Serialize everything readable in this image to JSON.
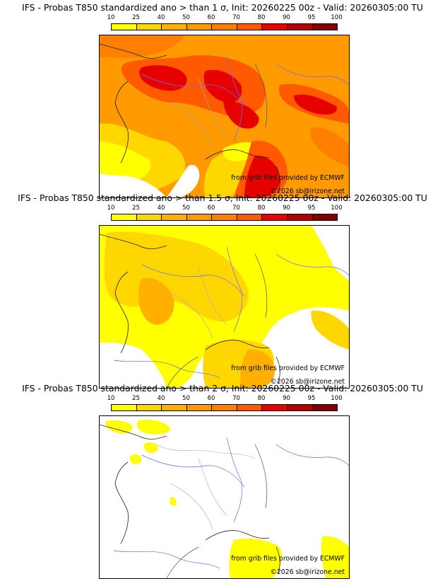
{
  "colorbar": {
    "ticks": [
      "10",
      "25",
      "40",
      "50",
      "60",
      "70",
      "80",
      "90",
      "95",
      "100"
    ],
    "colors": [
      "#ffff00",
      "#ffd700",
      "#ffb000",
      "#ff9a00",
      "#ff7f00",
      "#ff5a00",
      "#e60000",
      "#b40000",
      "#820000"
    ]
  },
  "panels": [
    {
      "title": "IFS - Probas T850  standardized ano > than 1 σ, Init: 20260225 00z - Valid: 20260305:00 TU",
      "credit": "from grib files provided by ECMWF",
      "copyright": "©2026 sb@irizone.net"
    },
    {
      "title": "IFS - Probas T850  standardized ano > than 1.5 σ, Init: 20260225 00z - Valid: 20260305:00 TU",
      "credit": "from grib files provided by ECMWF",
      "copyright": "©2026 sb@irizone.net"
    },
    {
      "title": "IFS - Probas T850  standardized ano > than 2 σ, Init: 20260225 00z - Valid: 20260305:00 TU",
      "credit": "from grib files provided by ECMWF",
      "copyright": "©2026 sb@irizone.net"
    }
  ]
}
